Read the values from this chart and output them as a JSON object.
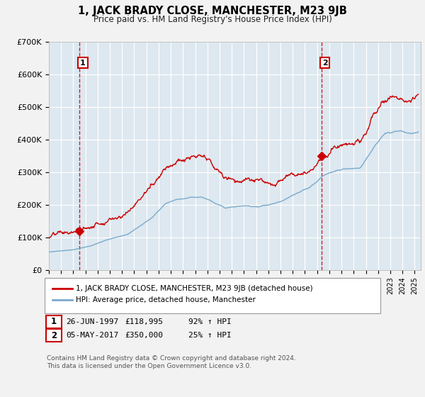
{
  "title": "1, JACK BRADY CLOSE, MANCHESTER, M23 9JB",
  "subtitle": "Price paid vs. HM Land Registry's House Price Index (HPI)",
  "ylabel_ticks": [
    "£0",
    "£100K",
    "£200K",
    "£300K",
    "£400K",
    "£500K",
    "£600K",
    "£700K"
  ],
  "ylim": [
    0,
    700000
  ],
  "xlim_start": 1995.0,
  "xlim_end": 2025.5,
  "sale1_date": 1997.49,
  "sale1_price": 118995,
  "sale1_label": "1",
  "sale2_date": 2017.34,
  "sale2_price": 350000,
  "sale2_label": "2",
  "property_color": "#cc0000",
  "hpi_color": "#7aaacc",
  "background_color": "#dde8f0",
  "grid_color": "#ffffff",
  "fig_background": "#f2f2f2",
  "legend_label_property": "1, JACK BRADY CLOSE, MANCHESTER, M23 9JB (detached house)",
  "legend_label_hpi": "HPI: Average price, detached house, Manchester",
  "annotation1_date": "26-JUN-1997",
  "annotation1_price": "£118,995",
  "annotation1_hpi": "92% ↑ HPI",
  "annotation2_date": "05-MAY-2017",
  "annotation2_price": "£350,000",
  "annotation2_hpi": "25% ↑ HPI",
  "footnote": "Contains HM Land Registry data © Crown copyright and database right 2024.\nThis data is licensed under the Open Government Licence v3.0."
}
